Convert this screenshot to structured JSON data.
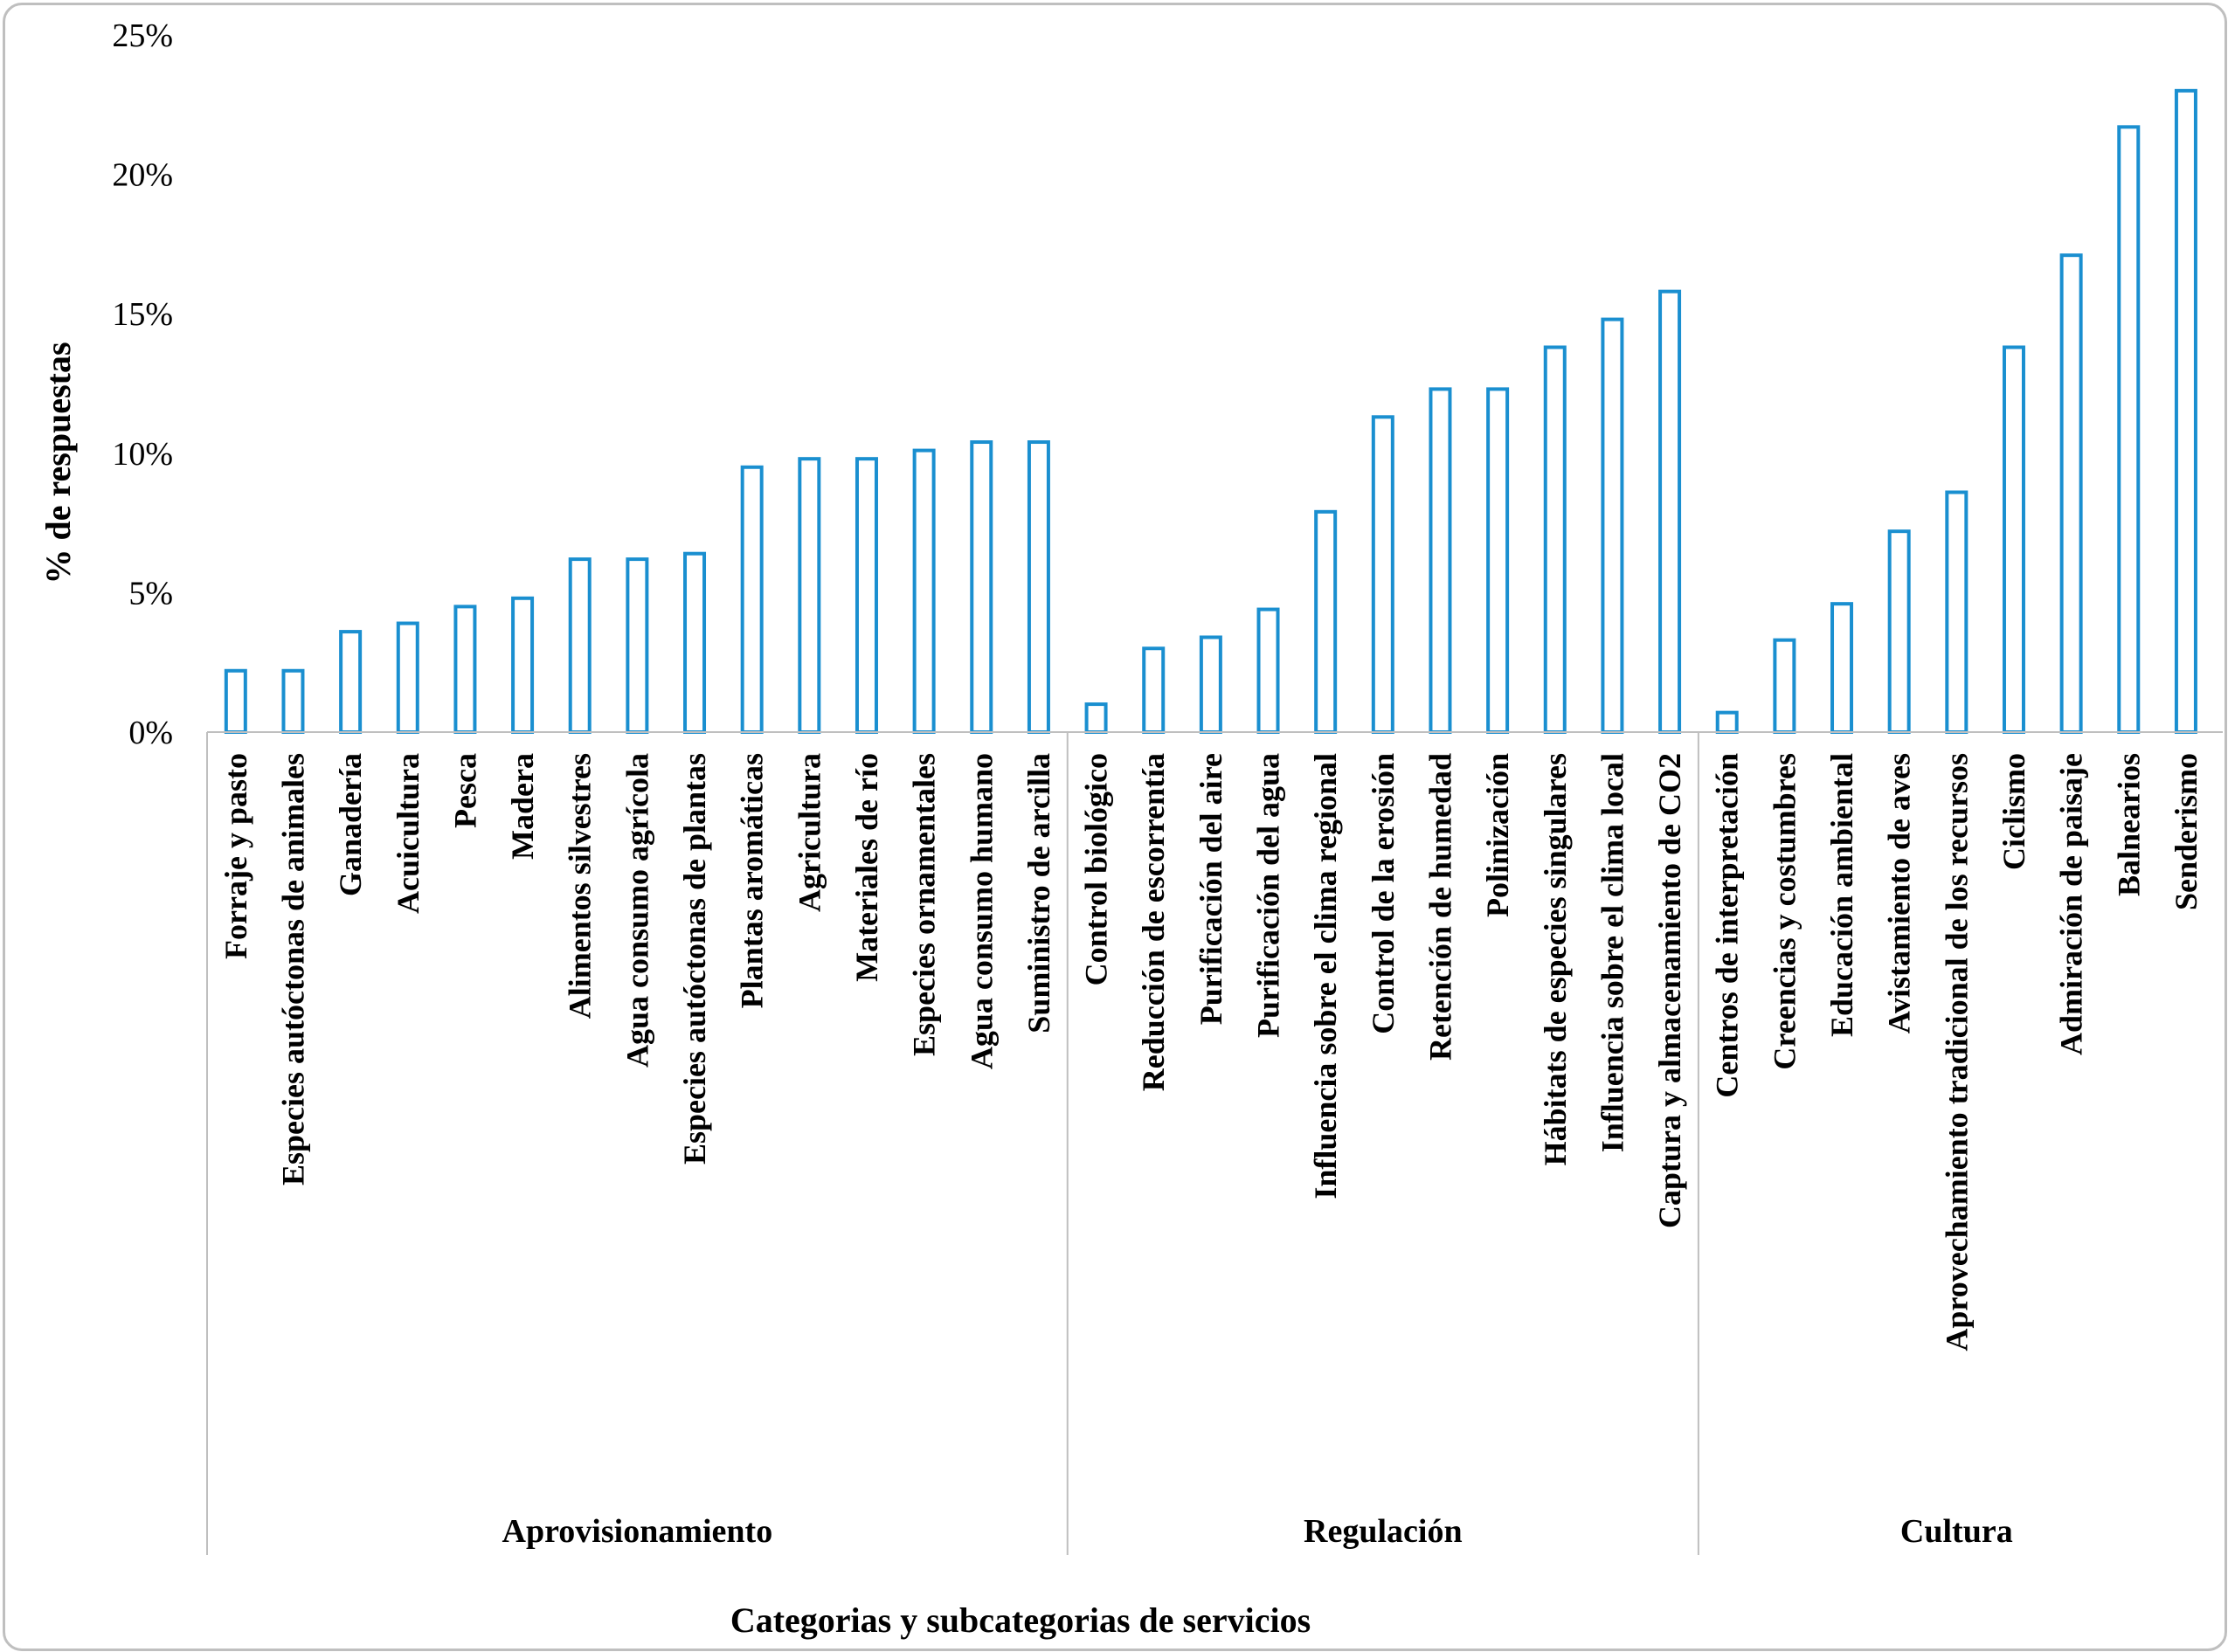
{
  "chart_data": {
    "type": "bar",
    "xlabel": "Categorias y subcategorias de servicios",
    "ylabel": "% de respuestas",
    "ylim": [
      0,
      25
    ],
    "yticks": [
      "0%",
      "5%",
      "10%",
      "15%",
      "20%",
      "25%"
    ],
    "grid": false,
    "bar_color": "#1a8fd0",
    "bar_fill": "#ffffff",
    "groups": [
      {
        "name": "Aprovisionamiento",
        "categories": [
          "Forraje y pasto",
          "Especies autóctonas de animales",
          "Ganadería",
          "Acuicultura",
          "Pesca",
          "Madera",
          "Alimentos silvestres",
          "Agua consumo agrícola",
          "Especies autóctonas de plantas",
          "Plantas aromáticas",
          "Agricultura",
          "Materiales de río",
          "Especies ornamentales",
          "Agua consumo humano",
          "Suministro de arcilla"
        ],
        "values": [
          2.2,
          2.2,
          3.6,
          3.9,
          4.5,
          4.8,
          6.2,
          6.2,
          6.4,
          9.5,
          9.8,
          9.8,
          10.1,
          10.4,
          10.4
        ]
      },
      {
        "name": "Regulación",
        "categories": [
          "Control biológico",
          "Reducción de escorrentía",
          "Purificación del aire",
          "Purificación del agua",
          "Influencia sobre el clima regional",
          "Control de la erosión",
          "Retención de humedad",
          "Polinización",
          "Hábitats de especies singulares",
          "Influencia sobre el clima local",
          "Captura y almacenamiento de CO2"
        ],
        "values": [
          1.0,
          3.0,
          3.4,
          4.4,
          7.9,
          11.3,
          12.3,
          12.3,
          13.8,
          14.8,
          15.8
        ]
      },
      {
        "name": "Cultura",
        "categories": [
          "Centros de interpretación",
          "Creencias y costumbres",
          "Educación ambiental",
          "Avistamiento de aves",
          "Aprovechamiento tradicional de los recursos",
          "Ciclismo",
          "Admiración de paisaje",
          "Balnearios",
          "Senderismo"
        ],
        "values": [
          0.7,
          3.3,
          4.6,
          7.2,
          8.6,
          13.8,
          17.1,
          21.7,
          23.0
        ]
      }
    ]
  }
}
